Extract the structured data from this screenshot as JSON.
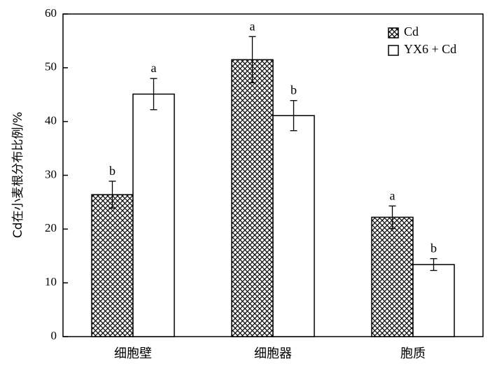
{
  "chart_data": {
    "type": "bar",
    "categories": [
      "细胞壁",
      "细胞器",
      "胞质"
    ],
    "series": [
      {
        "name": "Cd",
        "pattern": "crosshatch",
        "values": [
          26.4,
          51.5,
          22.2
        ],
        "errors": [
          2.5,
          4.3,
          2.1
        ],
        "significance": [
          "b",
          "a",
          "a"
        ]
      },
      {
        "name": "YX6 + Cd",
        "pattern": "none",
        "values": [
          45.1,
          41.1,
          13.4
        ],
        "errors": [
          2.9,
          2.8,
          1.1
        ],
        "significance": [
          "a",
          "b",
          "b"
        ]
      }
    ],
    "ylabel": "Cd在小麦根分布比例/%",
    "xlabel": "",
    "title": "",
    "ylim": [
      0,
      60
    ],
    "yticks": [
      0,
      10,
      20,
      30,
      40,
      50,
      60
    ],
    "legend_position": "top-right",
    "grid": false
  }
}
